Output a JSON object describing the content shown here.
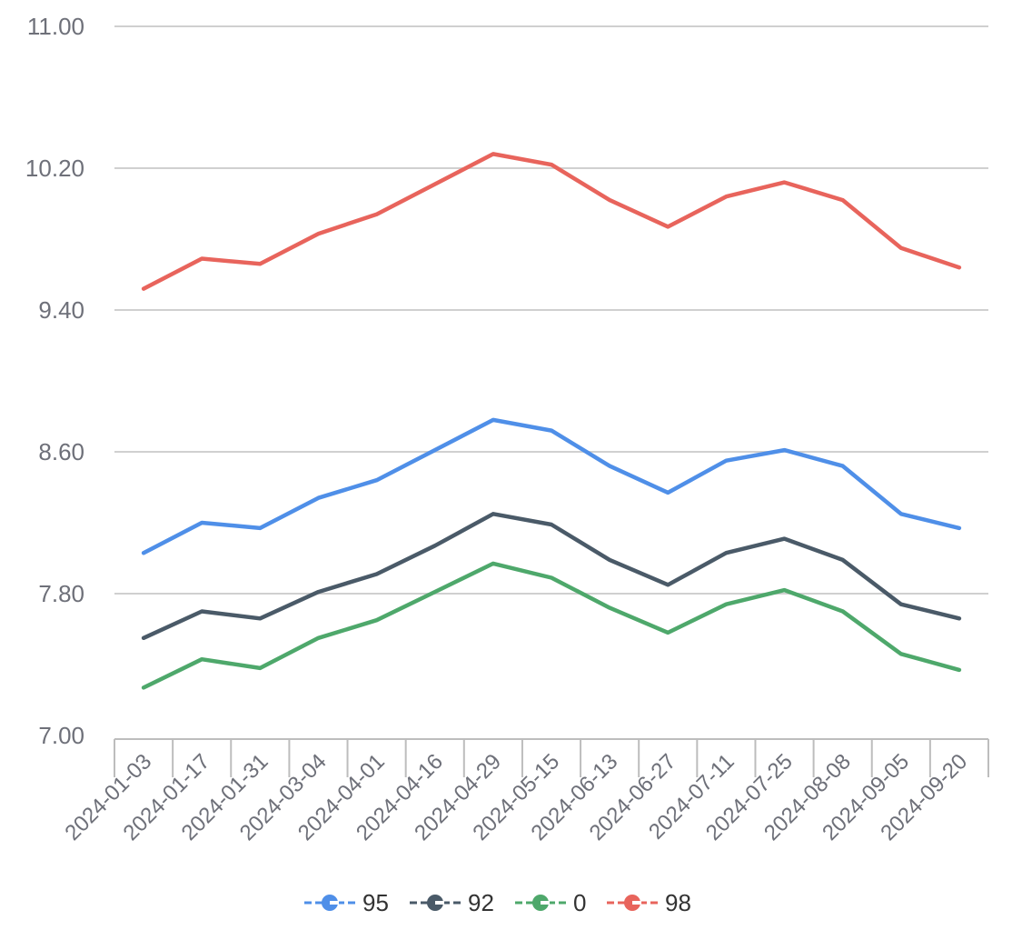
{
  "chart_data": {
    "type": "line",
    "title": "",
    "xlabel": "",
    "ylabel": "",
    "x": [
      "2024-01-03",
      "2024-01-17",
      "2024-01-31",
      "2024-03-04",
      "2024-04-01",
      "2024-04-16",
      "2024-04-29",
      "2024-05-15",
      "2024-06-13",
      "2024-06-27",
      "2024-07-11",
      "2024-07-25",
      "2024-08-08",
      "2024-09-05",
      "2024-09-20"
    ],
    "ylim": [
      7.0,
      11.0
    ],
    "yticks": [
      "7.00",
      "7.80",
      "8.60",
      "9.40",
      "10.20",
      "11.00"
    ],
    "grid": true,
    "legend_position": "bottom",
    "series": [
      {
        "name": "95",
        "color": "#4f8fe8",
        "values": [
          8.03,
          8.2,
          8.17,
          8.34,
          8.44,
          8.61,
          8.78,
          8.72,
          8.52,
          8.37,
          8.55,
          8.61,
          8.52,
          8.25,
          8.17
        ]
      },
      {
        "name": "92",
        "color": "#4a5a68",
        "values": [
          7.55,
          7.7,
          7.66,
          7.81,
          7.91,
          8.07,
          8.25,
          8.19,
          7.99,
          7.85,
          8.03,
          8.11,
          7.99,
          7.74,
          7.66
        ]
      },
      {
        "name": "0",
        "color": "#4ea86b",
        "values": [
          7.27,
          7.43,
          7.38,
          7.55,
          7.65,
          7.81,
          7.97,
          7.89,
          7.72,
          7.58,
          7.74,
          7.82,
          7.7,
          7.46,
          7.37
        ]
      },
      {
        "name": "98",
        "color": "#e8645c",
        "values": [
          9.52,
          9.69,
          9.66,
          9.83,
          9.94,
          10.11,
          10.28,
          10.22,
          10.02,
          9.87,
          10.04,
          10.12,
          10.02,
          9.75,
          9.64
        ]
      }
    ]
  }
}
